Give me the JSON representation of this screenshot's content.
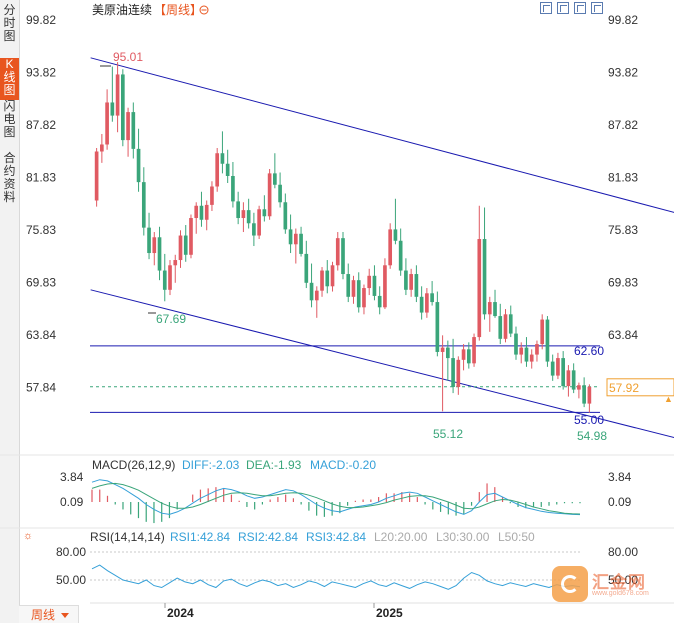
{
  "sidebar": {
    "tabs": [
      {
        "label": "分时图",
        "active": false
      },
      {
        "label": "K线图",
        "active": true
      },
      {
        "label": "闪电图",
        "active": false
      },
      {
        "label": "合约资料",
        "active": false
      }
    ]
  },
  "header": {
    "title": "美原油连续",
    "period_badge": "【周线】",
    "toggle_icon": "minus-circle-icon"
  },
  "toolbar": {
    "icons": [
      "expand-icon",
      "fit-icon",
      "chart-settings-icon",
      "grid-icon"
    ]
  },
  "period_selector": {
    "label": "周线"
  },
  "watermark": {
    "text": "汇金网",
    "url": "www.gold678.com"
  },
  "colors": {
    "up": "#e05a62",
    "down": "#3aa57a",
    "channel_line": "#1a1ab0",
    "accent": "#e8551f",
    "macd_line": "#35a0d8",
    "signal_line": "#3aa57a",
    "rsi_line": "#35a0d8"
  },
  "chart_data": [
    {
      "type": "candlestick",
      "title": "美原油连续",
      "y_ticks": [
        "99.82",
        "93.82",
        "87.82",
        "81.83",
        "75.83",
        "69.83",
        "63.84",
        "57.84"
      ],
      "ylim": [
        51.5,
        99.82
      ],
      "x_ticks": [
        "2024",
        "2025"
      ],
      "annotations": {
        "high_label": "95.01",
        "low_label": "67.69",
        "channel_low_label": "55.12",
        "last_low_label": "54.98",
        "hline_upper": "62.60",
        "hline_lower": "55.00",
        "current_price": "57.92"
      },
      "hlines": [
        62.6,
        55.0
      ],
      "current": 57.92,
      "channel_upper": {
        "from": [
          0,
          95.5
        ],
        "to": [
          140,
          72.5
        ]
      },
      "channel_lower": {
        "from": [
          0,
          69.0
        ],
        "to": [
          110,
          52.0
        ]
      },
      "candles": [
        [
          79.2,
          85.2,
          78.5,
          84.8
        ],
        [
          84.8,
          86.8,
          83.5,
          85.6
        ],
        [
          85.6,
          91.9,
          85.0,
          90.4
        ],
        [
          90.4,
          94.5,
          88.2,
          88.9
        ],
        [
          88.9,
          95.01,
          87.0,
          93.6
        ],
        [
          93.6,
          94.2,
          85.4,
          86.1
        ],
        [
          86.1,
          89.8,
          84.2,
          89.3
        ],
        [
          89.3,
          90.4,
          84.0,
          85.1
        ],
        [
          85.1,
          87.4,
          80.2,
          81.3
        ],
        [
          81.3,
          83.0,
          75.2,
          76.1
        ],
        [
          76.1,
          77.8,
          72.5,
          73.2
        ],
        [
          73.2,
          75.6,
          71.8,
          75.0
        ],
        [
          75.0,
          76.2,
          70.1,
          71.2
        ],
        [
          71.2,
          73.1,
          67.69,
          69.0
        ],
        [
          69.0,
          72.4,
          68.4,
          71.8
        ],
        [
          71.8,
          73.0,
          69.8,
          72.4
        ],
        [
          72.4,
          75.8,
          71.5,
          75.2
        ],
        [
          75.2,
          76.4,
          72.2,
          73.0
        ],
        [
          73.0,
          77.6,
          72.6,
          77.2
        ],
        [
          77.2,
          79.0,
          75.4,
          78.6
        ],
        [
          78.6,
          80.2,
          76.2,
          77.0
        ],
        [
          77.0,
          79.2,
          75.8,
          78.7
        ],
        [
          78.7,
          81.4,
          78.0,
          80.8
        ],
        [
          80.8,
          85.2,
          80.2,
          84.6
        ],
        [
          84.6,
          87.1,
          82.3,
          83.4
        ],
        [
          83.4,
          85.0,
          81.2,
          82.0
        ],
        [
          82.0,
          83.6,
          78.4,
          79.1
        ],
        [
          79.1,
          80.2,
          76.5,
          77.2
        ],
        [
          77.2,
          79.0,
          75.6,
          78.1
        ],
        [
          78.1,
          79.4,
          76.0,
          76.6
        ],
        [
          76.6,
          77.8,
          74.0,
          75.2
        ],
        [
          75.2,
          78.6,
          74.8,
          78.2
        ],
        [
          78.2,
          79.8,
          76.8,
          77.4
        ],
        [
          77.4,
          82.8,
          77.0,
          82.3
        ],
        [
          82.3,
          84.6,
          80.6,
          81.0
        ],
        [
          81.0,
          82.4,
          78.4,
          79.0
        ],
        [
          79.0,
          80.0,
          75.4,
          75.9
        ],
        [
          75.9,
          77.6,
          73.2,
          74.2
        ],
        [
          74.2,
          76.0,
          72.0,
          75.4
        ],
        [
          75.4,
          76.2,
          72.8,
          73.1
        ],
        [
          73.1,
          74.6,
          69.2,
          69.8
        ],
        [
          69.8,
          72.0,
          67.0,
          67.8
        ],
        [
          67.8,
          69.4,
          65.8,
          68.9
        ],
        [
          68.9,
          71.6,
          68.2,
          71.2
        ],
        [
          71.2,
          72.4,
          68.6,
          69.4
        ],
        [
          69.4,
          72.2,
          68.8,
          71.8
        ],
        [
          71.8,
          75.6,
          71.2,
          74.9
        ],
        [
          74.9,
          75.6,
          70.2,
          70.8
        ],
        [
          70.8,
          72.0,
          67.6,
          68.2
        ],
        [
          68.2,
          70.6,
          67.4,
          70.1
        ],
        [
          70.1,
          71.0,
          66.4,
          67.0
        ],
        [
          67.0,
          69.6,
          66.2,
          69.2
        ],
        [
          69.2,
          71.4,
          68.4,
          70.6
        ],
        [
          70.6,
          71.8,
          67.8,
          68.3
        ],
        [
          68.3,
          69.4,
          66.2,
          67.0
        ],
        [
          67.0,
          72.6,
          66.8,
          71.8
        ],
        [
          71.8,
          76.6,
          71.4,
          75.9
        ],
        [
          75.9,
          79.4,
          74.2,
          74.6
        ],
        [
          74.6,
          76.0,
          70.6,
          71.2
        ],
        [
          71.2,
          72.6,
          68.4,
          69.0
        ],
        [
          69.0,
          71.4,
          68.2,
          70.8
        ],
        [
          70.8,
          71.8,
          67.6,
          68.2
        ],
        [
          68.2,
          69.4,
          65.6,
          66.4
        ],
        [
          66.4,
          69.2,
          65.8,
          68.6
        ],
        [
          68.6,
          70.0,
          67.2,
          67.6
        ],
        [
          67.6,
          68.8,
          61.4,
          61.9
        ],
        [
          61.9,
          63.8,
          55.12,
          62.4
        ],
        [
          62.4,
          63.2,
          58.6,
          61.2
        ],
        [
          61.2,
          63.4,
          57.2,
          57.9
        ],
        [
          57.9,
          61.4,
          57.0,
          61.0
        ],
        [
          61.0,
          62.8,
          59.8,
          62.2
        ],
        [
          62.2,
          63.0,
          60.0,
          60.6
        ],
        [
          60.6,
          64.0,
          60.2,
          63.6
        ],
        [
          63.6,
          78.6,
          63.2,
          74.8
        ],
        [
          74.8,
          78.4,
          65.6,
          66.2
        ],
        [
          66.2,
          68.2,
          64.2,
          67.6
        ],
        [
          67.6,
          69.0,
          65.8,
          66.0
        ],
        [
          66.0,
          67.4,
          62.8,
          63.4
        ],
        [
          63.4,
          66.8,
          63.0,
          66.2
        ],
        [
          66.2,
          67.2,
          63.6,
          64.0
        ],
        [
          64.0,
          64.8,
          61.0,
          61.6
        ],
        [
          61.6,
          63.0,
          60.6,
          62.4
        ],
        [
          62.4,
          63.6,
          60.2,
          60.8
        ],
        [
          60.8,
          62.2,
          60.0,
          61.6
        ],
        [
          61.6,
          63.2,
          60.8,
          62.8
        ],
        [
          62.8,
          66.2,
          62.2,
          65.6
        ],
        [
          65.6,
          66.0,
          60.2,
          60.8
        ],
        [
          60.8,
          61.6,
          58.6,
          59.2
        ],
        [
          59.2,
          61.8,
          58.8,
          61.2
        ],
        [
          61.2,
          62.0,
          57.6,
          58.0
        ],
        [
          58.0,
          60.4,
          56.8,
          59.8
        ],
        [
          59.8,
          60.6,
          57.2,
          57.6
        ],
        [
          57.6,
          58.4,
          56.6,
          58.1
        ],
        [
          58.1,
          59.0,
          55.6,
          56.0
        ],
        [
          56.0,
          58.2,
          54.98,
          57.92
        ]
      ]
    },
    {
      "type": "line",
      "title": "MACD(26,12,9)",
      "legend": [
        "DIFF:-2.03",
        "DEA:-1.93",
        "MACD:-0.20"
      ],
      "y_ticks": [
        "3.84",
        "0.09"
      ],
      "series": [
        {
          "name": "DIFF",
          "values": [
            3.2,
            3.6,
            3.4,
            2.8,
            2.2,
            1.4,
            0.6,
            -0.4,
            -1.2,
            -1.8,
            -2.0,
            -1.6,
            -1.0,
            -0.2,
            0.6,
            1.2,
            1.8,
            2.2,
            2.0,
            1.6,
            1.0,
            0.6,
            0.8,
            1.2,
            1.6,
            2.0,
            1.8,
            1.2,
            0.4,
            -0.4,
            -1.0,
            -1.4,
            -1.6,
            -1.2,
            -0.8,
            -0.6,
            -0.4,
            0.0,
            0.6,
            1.0,
            1.4,
            1.6,
            1.4,
            0.8,
            0.2,
            -0.4,
            -1.0,
            -1.6,
            -2.0,
            -1.4,
            0.0,
            1.2,
            1.4,
            0.8,
            0.2,
            -0.4,
            -0.9,
            -1.2,
            -1.5,
            -1.7,
            -1.8,
            -1.9,
            -2.0,
            -2.03
          ]
        },
        {
          "name": "DEA",
          "values": [
            2.2,
            2.6,
            2.9,
            3.0,
            2.8,
            2.4,
            1.9,
            1.2,
            0.5,
            -0.2,
            -0.7,
            -1.0,
            -1.0,
            -0.8,
            -0.4,
            0.1,
            0.6,
            1.1,
            1.4,
            1.5,
            1.4,
            1.2,
            1.0,
            1.0,
            1.2,
            1.4,
            1.5,
            1.4,
            1.1,
            0.7,
            0.2,
            -0.3,
            -0.7,
            -0.9,
            -0.9,
            -0.8,
            -0.6,
            -0.4,
            -0.1,
            0.3,
            0.6,
            0.9,
            1.0,
            1.0,
            0.8,
            0.4,
            0.0,
            -0.5,
            -1.0,
            -1.1,
            -0.8,
            -0.3,
            0.2,
            0.4,
            0.3,
            0.0,
            -0.4,
            -0.8,
            -1.1,
            -1.4,
            -1.6,
            -1.8,
            -1.9,
            -1.93
          ]
        }
      ]
    },
    {
      "type": "line",
      "title": "RSI(14,14,14)",
      "legend": [
        "RSI1:42.84",
        "RSI2:42.84",
        "RSI3:42.84",
        "L20:20.00",
        "L30:30.00",
        "L50:50"
      ],
      "y_ticks": [
        "80.00",
        "50.00"
      ],
      "series": [
        {
          "name": "RSI1",
          "values": [
            62,
            66,
            60,
            55,
            50,
            48,
            46,
            50,
            44,
            42,
            47,
            52,
            48,
            46,
            50,
            45,
            42,
            49,
            51,
            46,
            43,
            47,
            50,
            48,
            44,
            46,
            42,
            45,
            49,
            47,
            43,
            48,
            46,
            44,
            42,
            46,
            49,
            45,
            43,
            47,
            44,
            41,
            45,
            48,
            46,
            43,
            40,
            44,
            52,
            58,
            55,
            49,
            46,
            44,
            47,
            45,
            43,
            46,
            44,
            42,
            45,
            43,
            44,
            42.84
          ]
        }
      ]
    }
  ]
}
